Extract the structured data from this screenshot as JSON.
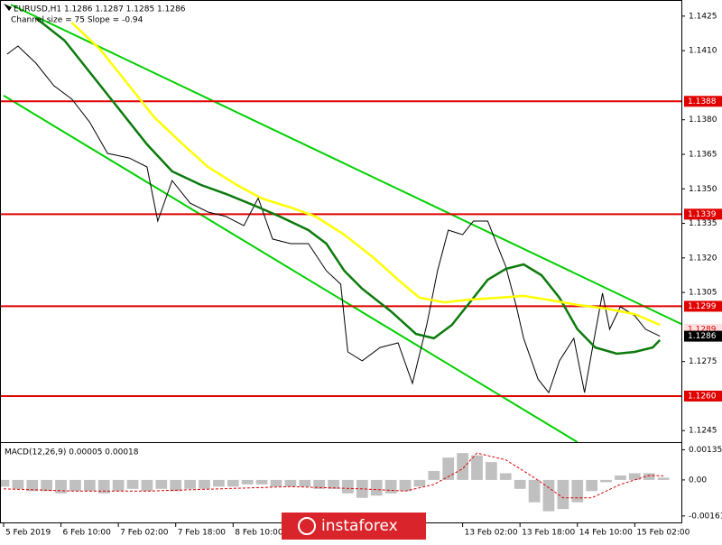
{
  "chart_data": [
    {
      "type": "line",
      "title": "EURUSD,H1  1.1286 1.1287 1.1285 1.1286",
      "subtitle": "Channel size = 75 Slope = -0.94",
      "xlim": [
        -1,
        189
      ],
      "ylim": [
        1.124,
        1.1432
      ],
      "yticks": [
        1.1425,
        {
          "value": 1.141,
          "label": "1.1410"
        },
        {
          "value": 1.138,
          "label": "1.1380"
        },
        1.1365,
        {
          "value": 1.135,
          "label": "1.1350"
        },
        1.1335,
        {
          "value": 1.132,
          "label": "1.1320"
        },
        1.1305,
        1.1275,
        1.1245
      ],
      "xticks": [
        {
          "value": 0,
          "label": "5 Feb 2019"
        },
        {
          "value": 16,
          "label": "6 Feb 10:00"
        },
        {
          "value": 32,
          "label": "7 Feb 02:00"
        },
        {
          "value": 48,
          "label": "7 Feb 18:00"
        },
        {
          "value": 64,
          "label": "8 Feb 10:00"
        },
        {
          "value": 128,
          "label": "13 Feb 02:00"
        },
        {
          "value": 144,
          "label": "13 Feb 18:00"
        },
        {
          "value": 160,
          "label": "14 Feb 10:00"
        },
        {
          "value": 176,
          "label": "15 Feb 02:00"
        }
      ],
      "levels": [
        1.1388,
        1.1339,
        1.1299,
        {
          "value": 1.126,
          "label": "1.1260"
        }
      ],
      "level_color": "#e00000",
      "markers": [
        {
          "value": 1.1289,
          "color": "#ffe0e0",
          "text_color": "#e00000"
        },
        {
          "value": 1.1286,
          "color": "#000000",
          "text_color": "#ffffff"
        }
      ],
      "channel": [
        {
          "color": "#00d000",
          "x": [
            2,
            189
          ],
          "values": [
            1.143,
            1.12913
          ]
        },
        {
          "color": "#00d000",
          "x": [
            0,
            160
          ],
          "values": [
            1.13905,
            1.124
          ]
        }
      ],
      "series": [
        {
          "color": "#000000",
          "x": [
            1,
            4,
            9,
            14,
            19,
            24,
            29,
            35,
            40,
            43,
            47,
            52,
            57,
            62,
            67,
            71,
            75,
            80,
            85,
            90,
            94,
            96,
            100,
            105,
            110,
            114,
            118,
            121,
            124,
            128,
            131,
            135,
            138,
            140,
            143,
            145,
            149,
            152,
            155,
            159,
            162,
            164,
            167,
            169,
            172,
            176,
            179,
            183
          ],
          "values": [
            1.14085,
            1.1412,
            1.14046,
            1.13948,
            1.1389,
            1.1379,
            1.13654,
            1.13634,
            1.13595,
            1.1336,
            1.13536,
            1.13438,
            1.13399,
            1.1338,
            1.1334,
            1.1346,
            1.13282,
            1.13262,
            1.13262,
            1.13144,
            1.13086,
            1.12792,
            1.12753,
            1.12811,
            1.12831,
            1.12655,
            1.1291,
            1.13144,
            1.13321,
            1.13301,
            1.1336,
            1.1336,
            1.13242,
            1.13164,
            1.12988,
            1.12851,
            1.12674,
            1.12615,
            1.12753,
            1.12851,
            1.12615,
            1.12792,
            1.13047,
            1.1289,
            1.12988,
            1.12949,
            1.1289,
            1.1286
          ]
        },
        {
          "color": "#0b7a0b",
          "x": [
            9,
            17,
            24,
            32,
            40,
            47,
            55,
            62,
            70,
            77,
            85,
            90,
            95,
            100,
            108,
            115,
            120,
            125,
            130,
            135,
            140,
            145,
            150,
            155,
            160,
            165,
            171,
            176,
            181,
            183
          ],
          "values": [
            1.14242,
            1.14144,
            1.14007,
            1.1385,
            1.13693,
            1.13576,
            1.13517,
            1.13478,
            1.13427,
            1.1338,
            1.13321,
            1.13262,
            1.13144,
            1.13066,
            1.12968,
            1.1287,
            1.12851,
            1.12909,
            1.13007,
            1.13105,
            1.13152,
            1.13172,
            1.13125,
            1.13027,
            1.1289,
            1.12811,
            1.12784,
            1.12792,
            1.12811,
            1.12843
          ]
        },
        {
          "color": "#ffff00",
          "x": [
            19,
            27,
            35,
            42,
            50,
            57,
            65,
            72,
            80,
            87,
            95,
            103,
            110,
            116,
            123,
            130,
            138,
            145,
            153,
            160,
            168,
            176,
            183
          ],
          "values": [
            1.14222,
            1.14104,
            1.13948,
            1.13811,
            1.13693,
            1.13595,
            1.13517,
            1.13458,
            1.13419,
            1.1338,
            1.13301,
            1.13203,
            1.13105,
            1.13027,
            1.13007,
            1.13019,
            1.13027,
            1.13035,
            1.13015,
            1.12996,
            1.1298,
            1.12956,
            1.12909
          ]
        }
      ]
    },
    {
      "type": "macd",
      "title": "MACD(12,26,9) 0.00005 0.00018",
      "xlim": [
        -1,
        189
      ],
      "ylim": [
        -0.00194,
        0.00169
      ],
      "yticks": [
        0.00135,
        {
          "value": 0,
          "label": "0.00"
        },
        -0.00161
      ],
      "bar_color": "#c0c0c0",
      "x": [
        0,
        4,
        8,
        12,
        16,
        20,
        24,
        28,
        32,
        36,
        40,
        44,
        48,
        52,
        56,
        60,
        64,
        68,
        72,
        76,
        80,
        84,
        88,
        92,
        96,
        100,
        104,
        108,
        112,
        116,
        120,
        124,
        128,
        132,
        136,
        140,
        144,
        148,
        152,
        156,
        160,
        164,
        168,
        172,
        176,
        180,
        184
      ],
      "values": [
        -0.0003,
        -0.0004,
        -0.0005,
        -0.0005,
        -0.0006,
        -0.0005,
        -0.0005,
        -0.0006,
        -0.0005,
        -0.0004,
        -0.0005,
        -0.0004,
        -0.0005,
        -0.0004,
        -0.0004,
        -0.0003,
        -0.0003,
        -0.0002,
        -0.0002,
        -0.0003,
        -0.0003,
        -0.0003,
        -0.0004,
        -0.0004,
        -0.0006,
        -0.0008,
        -0.0007,
        -0.0006,
        -0.0005,
        -0.0003,
        0.0004,
        0.001,
        0.0012,
        0.0011,
        0.0008,
        0.0003,
        -0.0004,
        -0.001,
        -0.0014,
        -0.0013,
        -0.001,
        -0.0005,
        -0.0001,
        0.0002,
        0.0003,
        0.0003,
        0.0001
      ],
      "signal": {
        "color": "#e00000",
        "x": [
          0,
          20,
          40,
          60,
          80,
          100,
          112,
          120,
          128,
          132,
          140,
          148,
          156,
          164,
          172,
          180,
          184
        ],
        "values": [
          -0.0004,
          -0.0005,
          -0.0005,
          -0.0004,
          -0.0003,
          -0.0004,
          -0.0005,
          -0.0002,
          0.0005,
          0.0012,
          0.0009,
          0.0001,
          -0.0008,
          -0.0008,
          -0.0002,
          0.0002,
          0.00018
        ]
      }
    }
  ],
  "logo": "instaforex"
}
